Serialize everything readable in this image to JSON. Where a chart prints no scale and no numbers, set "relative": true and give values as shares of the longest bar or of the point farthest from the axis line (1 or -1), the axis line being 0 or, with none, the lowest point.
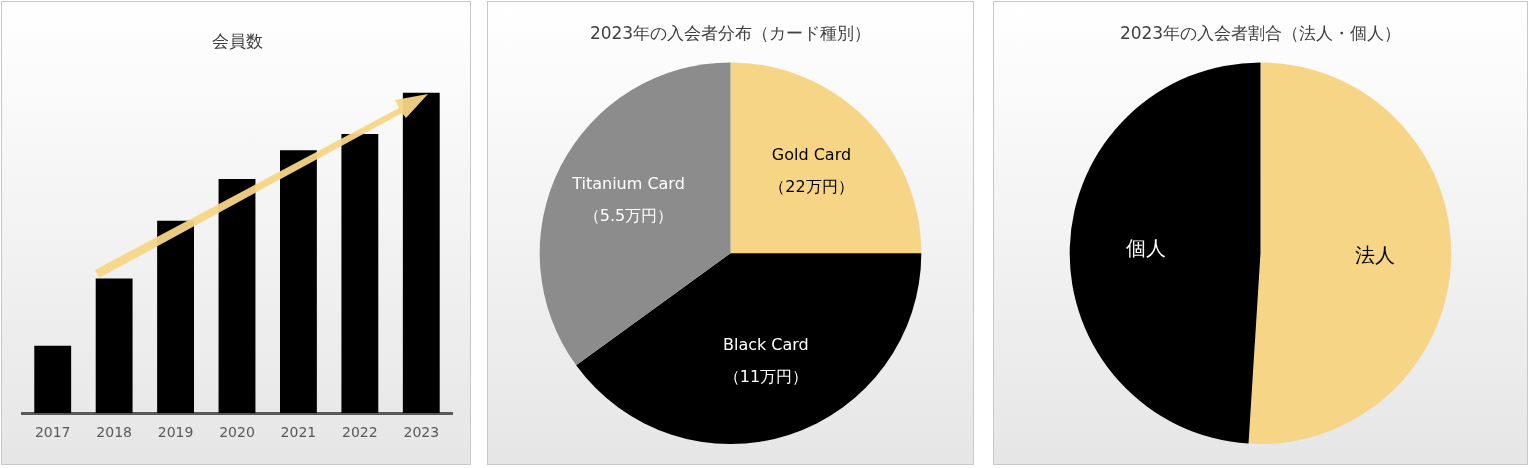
{
  "chart_data": [
    {
      "type": "bar",
      "title": "会員数",
      "categories": [
        "2017",
        "2018",
        "2019",
        "2020",
        "2021",
        "2022",
        "2023"
      ],
      "values": [
        0.21,
        0.42,
        0.6,
        0.73,
        0.82,
        0.87,
        1
      ],
      "color": "#000000",
      "relative": true,
      "grid": false,
      "legend": false
    },
    {
      "type": "pie",
      "title": "2023年の入会者分布（カード種別）",
      "categories": [
        "Gold Card\n（22万円）",
        "Black Card\n（11万円）",
        "Titanium Card\n（5.5万円）"
      ],
      "values": [
        25,
        40,
        35
      ],
      "colors": [
        "#f6d586",
        "#000000",
        "#8c8c8c"
      ],
      "legend": false
    },
    {
      "type": "pie",
      "title": "2023年の入会者割合（法人・個人）",
      "categories": [
        "法人",
        "個人"
      ],
      "values": [
        51,
        49
      ],
      "colors": [
        "#f6d586",
        "#000000"
      ],
      "legend": false
    }
  ]
}
